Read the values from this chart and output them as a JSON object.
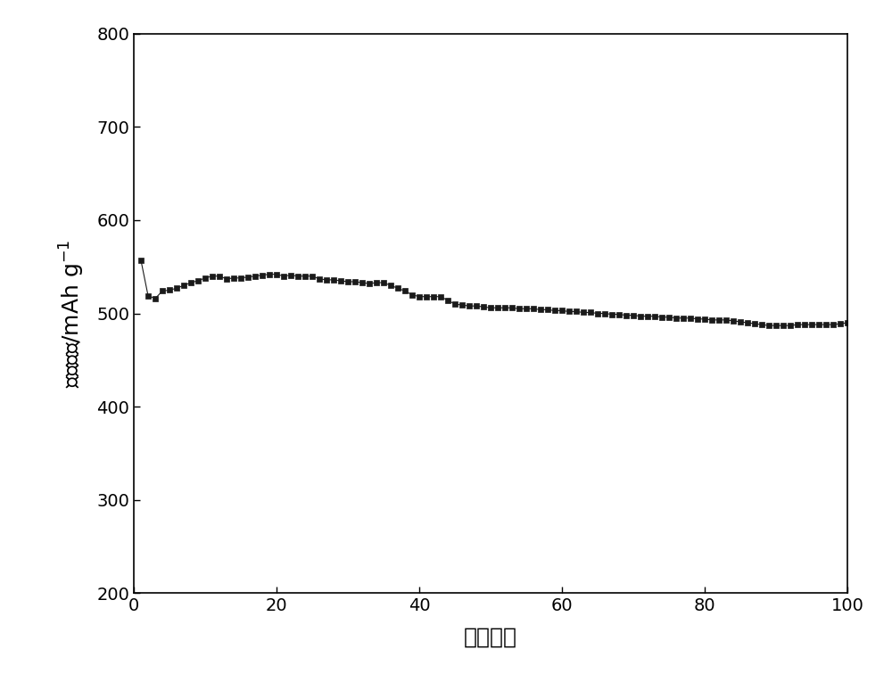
{
  "title": "",
  "xlabel": "循环次数",
  "xlim": [
    0,
    100
  ],
  "ylim": [
    200,
    800
  ],
  "xticks": [
    0,
    20,
    40,
    60,
    80,
    100
  ],
  "yticks": [
    200,
    300,
    400,
    500,
    600,
    700,
    800
  ],
  "line_color": "#1a1a1a",
  "marker": "s",
  "markersize": 4,
  "linewidth": 0.8,
  "background_color": "#ffffff",
  "x": [
    1,
    2,
    3,
    4,
    5,
    6,
    7,
    8,
    9,
    10,
    11,
    12,
    13,
    14,
    15,
    16,
    17,
    18,
    19,
    20,
    21,
    22,
    23,
    24,
    25,
    26,
    27,
    28,
    29,
    30,
    31,
    32,
    33,
    34,
    35,
    36,
    37,
    38,
    39,
    40,
    41,
    42,
    43,
    44,
    45,
    46,
    47,
    48,
    49,
    50,
    51,
    52,
    53,
    54,
    55,
    56,
    57,
    58,
    59,
    60,
    61,
    62,
    63,
    64,
    65,
    66,
    67,
    68,
    69,
    70,
    71,
    72,
    73,
    74,
    75,
    76,
    77,
    78,
    79,
    80,
    81,
    82,
    83,
    84,
    85,
    86,
    87,
    88,
    89,
    90,
    91,
    92,
    93,
    94,
    95,
    96,
    97,
    98,
    99,
    100
  ],
  "y": [
    557,
    519,
    516,
    524,
    525,
    527,
    530,
    533,
    535,
    538,
    540,
    540,
    537,
    538,
    538,
    539,
    540,
    541,
    542,
    542,
    540,
    541,
    540,
    540,
    540,
    537,
    536,
    536,
    535,
    534,
    534,
    533,
    532,
    533,
    533,
    530,
    527,
    524,
    520,
    518,
    518,
    518,
    518,
    514,
    510,
    509,
    508,
    508,
    507,
    506,
    506,
    506,
    506,
    505,
    505,
    505,
    504,
    504,
    503,
    503,
    502,
    502,
    501,
    501,
    500,
    500,
    499,
    499,
    498,
    498,
    497,
    497,
    497,
    496,
    496,
    495,
    495,
    495,
    494,
    494,
    493,
    493,
    493,
    492,
    491,
    490,
    489,
    488,
    487,
    487,
    487,
    487,
    488,
    488,
    488,
    488,
    488,
    488,
    489,
    490
  ]
}
